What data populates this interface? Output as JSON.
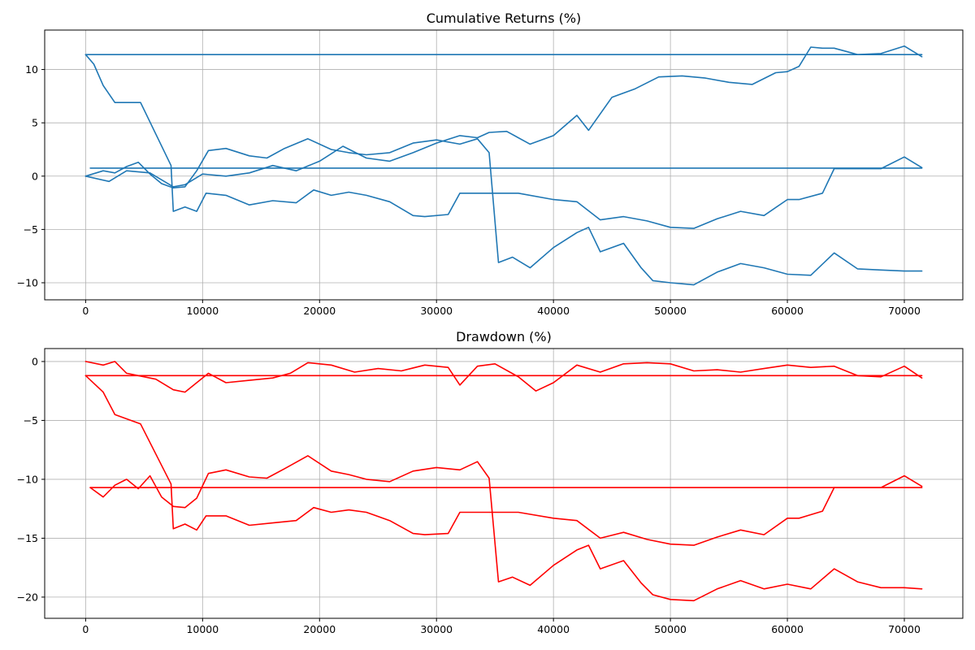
{
  "chart_data": [
    {
      "type": "line",
      "title": "Cumulative Returns (%)",
      "xlabel": "",
      "ylabel": "",
      "xlim": [
        -3500,
        75000
      ],
      "ylim": [
        -11.6,
        13.7
      ],
      "xticks": [
        0,
        10000,
        20000,
        30000,
        40000,
        50000,
        60000,
        70000
      ],
      "xtick_labels": [
        "0",
        "10000",
        "20000",
        "30000",
        "40000",
        "50000",
        "60000",
        "70000"
      ],
      "yticks": [
        -10,
        -5,
        0,
        5,
        10
      ],
      "ytick_labels": [
        "−10",
        "−5",
        "0",
        "5",
        "10"
      ],
      "grid": true,
      "legend": "none",
      "color": "#1f77b4",
      "series": [
        {
          "x": [
            0,
            700,
            1500,
            2500,
            4700,
            7300,
            7500,
            8500,
            9500,
            10300,
            12000,
            14000,
            16000,
            18000,
            19500,
            21000,
            22500,
            24000,
            26000,
            28000,
            29000,
            31000,
            32000,
            34500,
            35000,
            37000,
            40000,
            42000,
            44000,
            46000,
            48000,
            50000,
            52000,
            54000,
            56000,
            58000,
            60000,
            61000,
            63000,
            64000,
            66000,
            68000,
            70000,
            71500
          ],
          "y": [
            11.4,
            10.5,
            8.5,
            6.9,
            6.9,
            1.0,
            -3.3,
            -2.9,
            -3.3,
            -1.6,
            -1.8,
            -2.7,
            -2.3,
            -2.5,
            -1.3,
            -1.8,
            -1.5,
            -1.8,
            -2.4,
            -3.7,
            -3.8,
            -3.6,
            -1.6,
            -1.6,
            -1.6,
            -1.6,
            -2.2,
            -2.4,
            -4.1,
            -3.8,
            -4.2,
            -4.8,
            -4.9,
            -4.0,
            -3.3,
            -3.7,
            -2.2,
            -2.2,
            -1.6,
            0.7,
            0.7,
            0.7,
            1.8,
            0.8
          ]
        },
        {
          "x": [
            0,
            1500,
            2500,
            3500,
            4500,
            5500,
            6500,
            7500,
            8500,
            9500,
            10500,
            12000,
            14000,
            15500,
            17000,
            19000,
            21000,
            22500,
            24000,
            26000,
            28000,
            30000,
            32000,
            33500,
            34500,
            35300,
            36500,
            38000,
            40000,
            42000,
            43000,
            44000,
            46000,
            47500,
            48500,
            50000,
            52000,
            54000,
            56000,
            58000,
            60000,
            62000,
            64000,
            66000,
            68000,
            70000,
            71500
          ],
          "y": [
            0.0,
            0.5,
            0.3,
            0.9,
            1.3,
            0.2,
            -0.7,
            -1.1,
            -1.0,
            0.5,
            2.4,
            2.6,
            1.9,
            1.7,
            2.6,
            3.5,
            2.5,
            2.2,
            2.0,
            2.2,
            3.1,
            3.4,
            3.0,
            3.5,
            2.2,
            -8.1,
            -7.6,
            -8.6,
            -6.7,
            -5.3,
            -4.8,
            -7.1,
            -6.3,
            -8.6,
            -9.8,
            -10.0,
            -10.2,
            -9.0,
            -8.2,
            -8.6,
            -9.2,
            -9.3,
            -7.2,
            -8.7,
            -8.8,
            -8.9,
            -8.9
          ]
        },
        {
          "x": [
            0,
            2000,
            3500,
            5500,
            7500,
            8500,
            10000,
            12000,
            14000,
            16000,
            18000,
            20000,
            22000,
            24000,
            26000,
            28000,
            30000,
            32000,
            33500,
            34500,
            36000,
            38000,
            40000,
            42000,
            43000,
            45000,
            47000,
            49000,
            51000,
            53000,
            55000,
            57000,
            59000,
            60000,
            61000,
            62000,
            63000,
            64000,
            65000,
            66000,
            68000,
            70000,
            71500
          ],
          "y": [
            0.0,
            -0.5,
            0.5,
            0.3,
            -1.0,
            -0.8,
            0.2,
            0.0,
            0.3,
            1.0,
            0.5,
            1.4,
            2.8,
            1.7,
            1.4,
            2.2,
            3.1,
            3.8,
            3.6,
            4.1,
            4.2,
            3.0,
            3.8,
            5.7,
            4.3,
            7.4,
            8.2,
            9.3,
            9.4,
            9.2,
            8.8,
            8.6,
            9.7,
            9.8,
            10.3,
            12.1,
            12.0,
            12.0,
            11.7,
            11.4,
            11.5,
            12.2,
            11.2
          ]
        },
        {
          "x": [
            0,
            71500
          ],
          "y": [
            11.4,
            11.4
          ]
        },
        {
          "x": [
            400,
            71500
          ],
          "y": [
            0.75,
            0.75
          ]
        }
      ]
    },
    {
      "type": "line",
      "title": "Drawdown (%)",
      "xlabel": "",
      "ylabel": "",
      "xlim": [
        -3500,
        75000
      ],
      "ylim": [
        -21.8,
        1.1
      ],
      "xticks": [
        0,
        10000,
        20000,
        30000,
        40000,
        50000,
        60000,
        70000
      ],
      "xtick_labels": [
        "0",
        "10000",
        "20000",
        "30000",
        "40000",
        "50000",
        "60000",
        "70000"
      ],
      "yticks": [
        -20,
        -15,
        -10,
        -5,
        0
      ],
      "ytick_labels": [
        "−20",
        "−15",
        "−10",
        "−5",
        "0"
      ],
      "grid": true,
      "legend": "none",
      "color": "#ff0000",
      "series": [
        {
          "x": [
            0,
            1500,
            2500,
            3500,
            4500,
            6000,
            7500,
            8500,
            9500,
            10500,
            12000,
            14000,
            16000,
            17500,
            19000,
            21000,
            23000,
            25000,
            27000,
            29000,
            31000,
            32000,
            33500,
            35000,
            37000,
            38500,
            40000,
            42000,
            44000,
            46000,
            48000,
            50000,
            52000,
            54000,
            56000,
            58000,
            60000,
            62000,
            64000,
            66000,
            68000,
            70000,
            71500
          ],
          "y": [
            0.0,
            -0.3,
            0.0,
            -1.0,
            -1.2,
            -1.5,
            -2.4,
            -2.6,
            -1.8,
            -1.0,
            -1.8,
            -1.6,
            -1.4,
            -1.0,
            -0.1,
            -0.3,
            -0.9,
            -0.6,
            -0.8,
            -0.3,
            -0.5,
            -2.0,
            -0.4,
            -0.2,
            -1.3,
            -2.5,
            -1.8,
            -0.3,
            -0.9,
            -0.2,
            -0.1,
            -0.2,
            -0.8,
            -0.7,
            -0.9,
            -0.6,
            -0.3,
            -0.5,
            -0.4,
            -1.2,
            -1.3,
            -0.4,
            -1.4
          ]
        },
        {
          "x": [
            0,
            1500,
            2500,
            4700,
            7300,
            7500,
            8500,
            9500,
            10300,
            12000,
            14000,
            16000,
            18000,
            19500,
            21000,
            22500,
            24000,
            26000,
            28000,
            29000,
            31000,
            32000,
            34500,
            35000,
            37000,
            40000,
            42000,
            44000,
            46000,
            48000,
            50000,
            52000,
            54000,
            56000,
            58000,
            60000,
            61000,
            63000,
            64000,
            66000,
            68000,
            70000,
            71500
          ],
          "y": [
            -1.2,
            -2.6,
            -4.5,
            -5.3,
            -10.4,
            -14.2,
            -13.8,
            -14.3,
            -13.1,
            -13.1,
            -13.9,
            -13.7,
            -13.5,
            -12.4,
            -12.8,
            -12.6,
            -12.8,
            -13.5,
            -14.6,
            -14.7,
            -14.6,
            -12.8,
            -12.8,
            -12.8,
            -12.8,
            -13.3,
            -13.5,
            -15.0,
            -14.5,
            -15.1,
            -15.5,
            -15.6,
            -14.9,
            -14.3,
            -14.7,
            -13.3,
            -13.3,
            -12.7,
            -10.7,
            -10.7,
            -10.7,
            -9.7,
            -10.6
          ]
        },
        {
          "x": [
            400,
            1500,
            2500,
            3500,
            4500,
            5500,
            6500,
            7500,
            8500,
            9500,
            10500,
            12000,
            14000,
            15500,
            17000,
            19000,
            21000,
            22500,
            24000,
            26000,
            28000,
            30000,
            32000,
            33500,
            34500,
            35300,
            36500,
            38000,
            40000,
            42000,
            43000,
            44000,
            46000,
            47500,
            48500,
            50000,
            52000,
            54000,
            56000,
            58000,
            60000,
            62000,
            64000,
            66000,
            68000,
            70000,
            71500
          ],
          "y": [
            -10.7,
            -11.5,
            -10.5,
            -10.0,
            -10.8,
            -9.7,
            -11.5,
            -12.3,
            -12.4,
            -11.6,
            -9.5,
            -9.2,
            -9.8,
            -9.9,
            -9.1,
            -8.0,
            -9.3,
            -9.6,
            -10.0,
            -10.2,
            -9.3,
            -9.0,
            -9.2,
            -8.5,
            -9.9,
            -18.7,
            -18.3,
            -19.0,
            -17.3,
            -16.0,
            -15.6,
            -17.6,
            -16.9,
            -18.8,
            -19.8,
            -20.2,
            -20.3,
            -19.3,
            -18.6,
            -19.3,
            -18.9,
            -19.3,
            -17.6,
            -18.7,
            -19.2,
            -19.2,
            -19.3
          ]
        },
        {
          "x": [
            0,
            71500
          ],
          "y": [
            -1.2,
            -1.2
          ]
        },
        {
          "x": [
            400,
            71500
          ],
          "y": [
            -10.7,
            -10.7
          ]
        }
      ]
    }
  ]
}
